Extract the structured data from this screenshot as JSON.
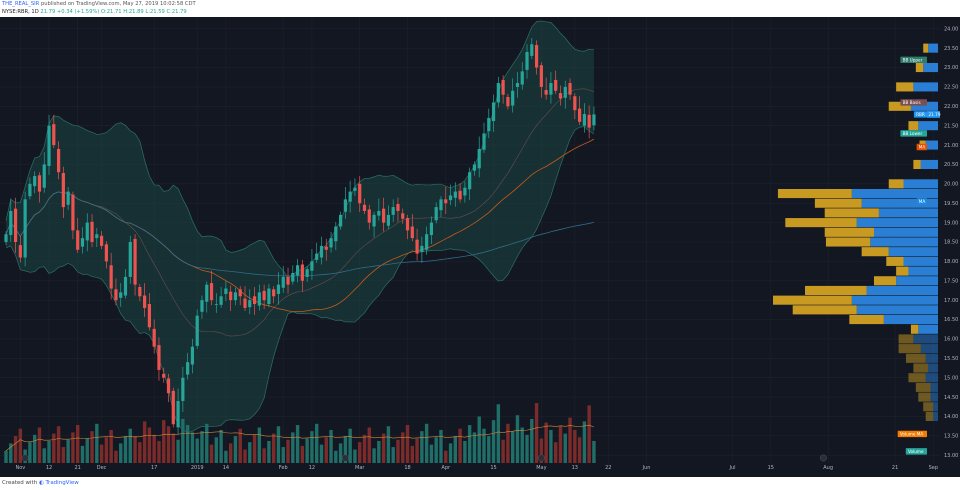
{
  "header": {
    "author": "THE_REAL_SIR",
    "published": "published on TradingView.com, May 27, 2019 10:02:58 CDT",
    "symbol_line": "NYSE:RBR, 1D",
    "last": "21.79",
    "change": "+0.34 (+1.59%)",
    "ohlc": "O:21.71 H:21.89 L:21.59 C:21.79"
  },
  "footer": {
    "created_with": "Created with",
    "brand": "TradingView"
  },
  "chart_data": {
    "type": "candlestick",
    "y_range": [
      12.8,
      24.2
    ],
    "y_ticks": [
      "24.00",
      "23.50",
      "23.00",
      "22.50",
      "22.00",
      "21.50",
      "21.00",
      "20.50",
      "20.00",
      "19.50",
      "19.00",
      "18.50",
      "18.00",
      "17.50",
      "17.00",
      "16.50",
      "16.00",
      "15.50",
      "15.00",
      "14.50",
      "14.00",
      "13.50",
      "13.00"
    ],
    "x_labels": [
      {
        "label": "Nov",
        "i": 3
      },
      {
        "label": "12",
        "i": 9
      },
      {
        "label": "21",
        "i": 15
      },
      {
        "label": "Dec",
        "i": 20
      },
      {
        "label": "17",
        "i": 31
      },
      {
        "label": "2019",
        "i": 40
      },
      {
        "label": "14",
        "i": 46
      },
      {
        "label": "Feb",
        "i": 58
      },
      {
        "label": "12",
        "i": 64
      },
      {
        "label": "Mar",
        "i": 74
      },
      {
        "label": "18",
        "i": 84
      },
      {
        "label": "Apr",
        "i": 92
      },
      {
        "label": "15",
        "i": 102
      },
      {
        "label": "May",
        "i": 112
      },
      {
        "label": "13",
        "i": 119
      },
      {
        "label": "22",
        "i": 126
      },
      {
        "label": "Jun",
        "i": 134
      },
      {
        "label": "Jul",
        "i": 152
      },
      {
        "label": "15",
        "i": 160
      },
      {
        "label": "Aug",
        "i": 172
      },
      {
        "label": "21",
        "i": 186
      },
      {
        "label": "Sep",
        "i": 194
      }
    ],
    "closes": [
      18.7,
      19.3,
      18.5,
      18.1,
      19.6,
      20.0,
      20.2,
      19.8,
      20.5,
      21.5,
      21.0,
      20.3,
      19.4,
      19.8,
      18.8,
      18.3,
      18.6,
      19.0,
      18.5,
      18.7,
      18.4,
      18.0,
      17.3,
      17.0,
      17.2,
      17.6,
      18.5,
      17.4,
      17.1,
      16.8,
      16.3,
      15.8,
      15.2,
      15.0,
      14.6,
      13.8,
      14.4,
      15.0,
      15.4,
      15.8,
      16.6,
      17.0,
      17.4,
      17.0,
      16.9,
      17.1,
      17.3,
      17.0,
      17.2,
      17.1,
      16.8,
      17.0,
      16.9,
      17.2,
      17.0,
      17.3,
      17.1,
      17.4,
      17.6,
      17.4,
      17.7,
      17.9,
      17.5,
      17.8,
      18.0,
      18.2,
      18.4,
      18.3,
      18.6,
      18.9,
      19.2,
      19.6,
      19.8,
      19.9,
      19.5,
      19.3,
      19.0,
      19.2,
      19.3,
      19.0,
      19.2,
      19.4,
      19.3,
      19.1,
      18.8,
      18.6,
      18.2,
      18.4,
      18.7,
      19.0,
      19.4,
      19.6,
      19.5,
      19.7,
      19.8,
      19.6,
      19.9,
      20.3,
      20.5,
      20.9,
      21.3,
      21.7,
      22.1,
      22.6,
      22.3,
      22.0,
      22.4,
      22.6,
      22.9,
      23.4,
      23.6,
      23.0,
      22.5,
      22.3,
      22.6,
      22.4,
      22.2,
      22.5,
      22.3,
      21.9,
      21.6,
      21.8,
      21.45,
      21.79
    ],
    "volume_profile": [
      {
        "price": 23.5,
        "up": 8,
        "down": 4
      },
      {
        "price": 23.0,
        "up": 12,
        "down": 6
      },
      {
        "price": 22.5,
        "up": 20,
        "down": 14
      },
      {
        "price": 22.0,
        "up": 22,
        "down": 18
      },
      {
        "price": 21.5,
        "up": 16,
        "down": 8
      },
      {
        "price": 21.0,
        "up": 10,
        "down": 5
      },
      {
        "price": 20.5,
        "up": 14,
        "down": 6
      },
      {
        "price": 20.0,
        "up": 28,
        "down": 12
      },
      {
        "price": 19.75,
        "up": 70,
        "down": 60
      },
      {
        "price": 19.5,
        "up": 62,
        "down": 38
      },
      {
        "price": 19.25,
        "up": 48,
        "down": 44
      },
      {
        "price": 19.0,
        "up": 66,
        "down": 58
      },
      {
        "price": 18.75,
        "up": 52,
        "down": 40
      },
      {
        "price": 18.5,
        "up": 55,
        "down": 36
      },
      {
        "price": 18.25,
        "up": 40,
        "down": 22
      },
      {
        "price": 18.0,
        "up": 28,
        "down": 14
      },
      {
        "price": 17.75,
        "up": 24,
        "down": 10
      },
      {
        "price": 17.5,
        "up": 34,
        "down": 18
      },
      {
        "price": 17.25,
        "up": 58,
        "down": 50
      },
      {
        "price": 17.0,
        "up": 70,
        "down": 64
      },
      {
        "price": 16.75,
        "up": 66,
        "down": 52
      },
      {
        "price": 16.5,
        "up": 44,
        "down": 28
      },
      {
        "price": 16.25,
        "up": 16,
        "down": 6
      },
      {
        "price": 16.0,
        "up": 20,
        "down": 12
      },
      {
        "price": 15.75,
        "up": 14,
        "down": 18
      },
      {
        "price": 15.5,
        "up": 10,
        "down": 16
      },
      {
        "price": 15.25,
        "up": 8,
        "down": 12
      },
      {
        "price": 15.0,
        "up": 10,
        "down": 14
      },
      {
        "price": 14.75,
        "up": 6,
        "down": 12
      },
      {
        "price": 14.5,
        "up": 6,
        "down": 10
      },
      {
        "price": 14.25,
        "up": 4,
        "down": 8
      },
      {
        "price": 14.0,
        "up": 4,
        "down": 6
      }
    ],
    "price_badges": [
      {
        "label": "BB Upper",
        "price": 23.2,
        "color": "#2e7d6a"
      },
      {
        "label": "BB Basis",
        "price": 22.1,
        "color": "#7b4e52"
      },
      {
        "label": "RBR",
        "price": 21.79,
        "color": "#2196f3"
      },
      {
        "label": "21.79",
        "price": 21.79,
        "color": "#2196f3",
        "value": true
      },
      {
        "label": "BB Lower",
        "price": 21.3,
        "color": "#26a69a"
      },
      {
        "label": "MA",
        "price": 20.95,
        "color": "#e65100"
      },
      {
        "label": "MA",
        "price": 19.55,
        "color": "#1e88e5"
      },
      {
        "label": "Volume MA",
        "price": 13.55,
        "color": "#f57c00"
      },
      {
        "label": "Volume",
        "price": 13.1,
        "color": "#26a69a"
      }
    ],
    "colors": {
      "background": "#131722",
      "up": "#26a69a",
      "down": "#ef5350",
      "vol_up": "#1f6e68",
      "vol_down": "#7c2b2b",
      "bb_fill": "#1d4f4a",
      "bb_line": "#2b7066",
      "ma_fast": "#c75b1e",
      "ma_slow": "#2f6c8c",
      "vp_up": "#2a7fd4",
      "vp_down": "#c99a22",
      "grid": "#1e222d"
    }
  }
}
